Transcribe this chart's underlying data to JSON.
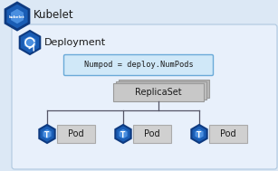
{
  "bg_outer": "#dce8f5",
  "bg_inner": "#e8f0fb",
  "kubelet_text": "Kubelet",
  "deployment_text": "Deployment",
  "numpod_text": "Numpod = deploy.NumPods",
  "replicaset_text": "ReplicaSet",
  "pod_text": "Pod",
  "icon_blue_outer": "#1a5db5",
  "icon_blue_inner": "#4a8fe0",
  "icon_blue_pod": "#3a7fd5",
  "numpod_bg": "#d0e8f8",
  "numpod_border": "#6aaad8",
  "replicaset_bg": "#c8c8c8",
  "replicaset_border": "#999999",
  "replicaset_shadow1": "#b8b8b8",
  "replicaset_shadow2": "#c0c0c0",
  "pod_bg": "#d0d0d0",
  "pod_border": "#aaaaaa",
  "line_color": "#555566",
  "text_color": "#1a1a1a",
  "kubelet_fontsize": 8.5,
  "deploy_fontsize": 8.0,
  "label_fontsize": 7.0,
  "code_fontsize": 6.2
}
